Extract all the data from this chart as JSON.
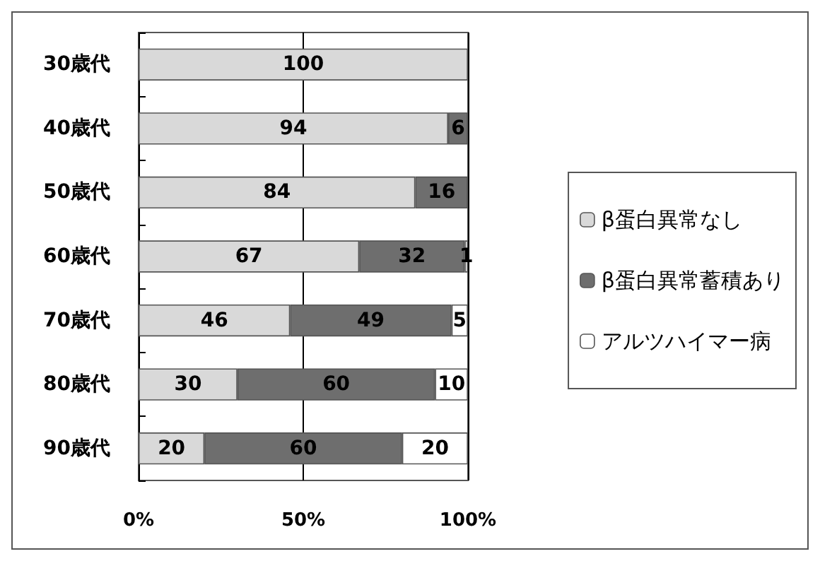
{
  "chart_data": {
    "type": "bar",
    "orientation": "horizontal",
    "stacked": true,
    "categories": [
      "30歳代",
      "40歳代",
      "50歳代",
      "60歳代",
      "70歳代",
      "80歳代",
      "90歳代"
    ],
    "series": [
      {
        "name": "β蛋白異常なし",
        "color": "#d9d9d9",
        "values": [
          100,
          94,
          84,
          67,
          46,
          30,
          20
        ]
      },
      {
        "name": "β蛋白異常蓄積あり",
        "color": "#6e6e6e",
        "values": [
          null,
          6,
          16,
          32,
          49,
          60,
          60
        ]
      },
      {
        "name": "アルツハイマー病",
        "color": "#ffffff",
        "values": [
          null,
          null,
          null,
          1,
          5,
          10,
          20
        ]
      }
    ],
    "xlim": [
      0,
      100
    ],
    "xticks": [
      {
        "value": 0,
        "label": "0%"
      },
      {
        "value": 50,
        "label": "50%"
      },
      {
        "value": 100,
        "label": "100%"
      }
    ],
    "grid": "x",
    "legend": "right",
    "data_labels": true
  }
}
